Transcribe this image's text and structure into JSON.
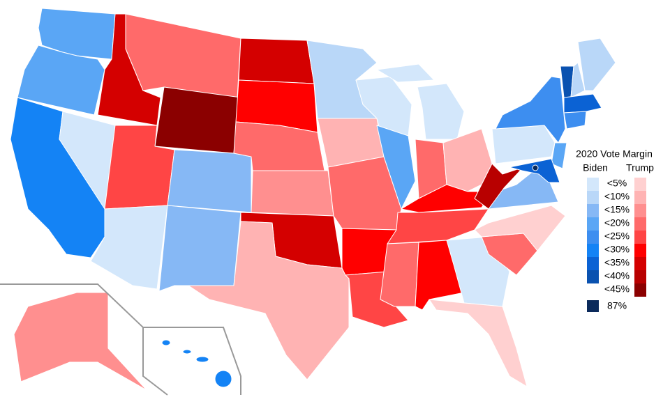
{
  "legend": {
    "title": "2020 Vote Margin",
    "biden_label": "Biden",
    "trump_label": "Trump",
    "bins": [
      "<5%",
      "<10%",
      "<15%",
      "<20%",
      "<25%",
      "<30%",
      "<35%",
      "<40%",
      "<45%"
    ],
    "biden_colors": [
      "#d3e7fb",
      "#b9d7f8",
      "#86b8f5",
      "#5aa6f5",
      "#3d8ef0",
      "#1483f5",
      "#0b62d4",
      "#0a52b0"
    ],
    "trump_colors": [
      "#ffd0d0",
      "#ffb3b3",
      "#ff8f8f",
      "#ff6a6a",
      "#ff4545",
      "#ff0000",
      "#d40000",
      "#b80000",
      "#8b0000"
    ],
    "dc": {
      "label": "87%",
      "color": "#0b2a5b"
    }
  }
}
